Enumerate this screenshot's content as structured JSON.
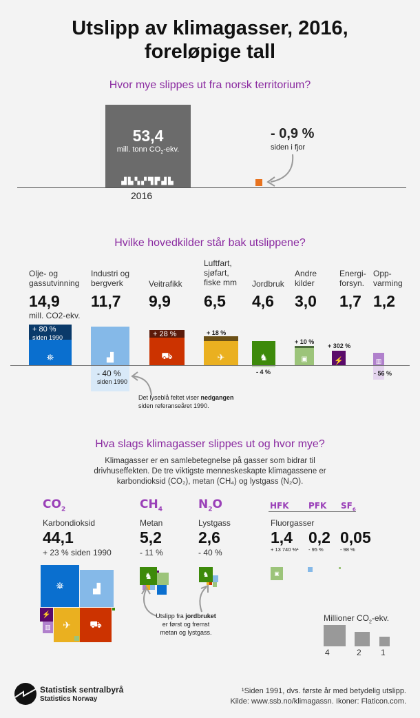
{
  "title_line1": "Utslipp av klimagasser, 2016,",
  "title_line2": "foreløpige tall",
  "section1": {
    "heading": "Hvor mye slippes ut fra norsk territorium?",
    "value": "53,4",
    "unit_pre": "mill. tonn CO",
    "unit_sub": "2",
    "unit_post": "-ekv.",
    "year": "2016",
    "change": "- 0,9 %",
    "change_label": "siden i fjor",
    "box_color": "#6b6b6b",
    "change_color": "#e8731f"
  },
  "section2": {
    "heading": "Hvilke hovedkilder står bak utslippene?",
    "unit": "mill. CO2-ekv.",
    "sources": [
      {
        "label": "Olje- og gassutvinning",
        "value": "14,9",
        "change": "+ 80 %",
        "change_sub": "siden 1990",
        "color": "#0a6fcf",
        "icon": "oil-platform-icon"
      },
      {
        "label": "Industri og bergverk",
        "value": "11,7",
        "change": "- 40 %",
        "change_sub": "siden 1990",
        "color": "#85b9e8",
        "icon": "factory-icon"
      },
      {
        "label": "Veitrafikk",
        "value": "9,9",
        "change": "+ 28 %",
        "color": "#cc3300",
        "icon": "car-icon"
      },
      {
        "label": "Luftfart, sjøfart, fiske mm",
        "value": "6,5",
        "change": "+ 18 %",
        "color": "#eab020",
        "icon": "plane-ship-icon"
      },
      {
        "label": "Jordbruk",
        "value": "4,6",
        "change": "- 4 %",
        "color": "#3d8a0a",
        "icon": "cow-icon"
      },
      {
        "label": "Andre kilder",
        "value": "3,0",
        "change": "+ 10 %",
        "color": "#9cc47a",
        "icon": "other-icon"
      },
      {
        "label": "Energi-forsyn.",
        "value": "1,7",
        "change": "+ 302 %",
        "color": "#5a0a6a",
        "icon": "power-pylon-icon"
      },
      {
        "label": "Opp-varming",
        "value": "1,2",
        "change": "- 56 %",
        "color": "#b080cc",
        "icon": "radiator-icon"
      }
    ],
    "note_pre": "Det lyseblå feltet viser ",
    "note_bold": "nedgangen",
    "note_post": "siden referanseåret 1990."
  },
  "section3": {
    "heading": "Hva slags klimagasser slippes ut og hvor mye?",
    "intro1": "Klimagasser er en samlebetegnelse på gasser som bidrar til",
    "intro2": "drivhuseffekten. De tre viktigste menneskeskapte klimagassene er",
    "intro3": "karbondioksid (CO₂), metan (CH₄) og lystgass (N₂O).",
    "co2": {
      "formula": "CO",
      "sub": "2",
      "name": "Karbondioksid",
      "value": "44,1",
      "change": "+ 23 % siden 1990"
    },
    "ch4": {
      "formula": "CH",
      "sub": "4",
      "name": "Metan",
      "value": "5,2",
      "change": "- 11 %"
    },
    "n2o": {
      "formula": "N",
      "sub": "2",
      "formula2": "O",
      "name": "Lystgass",
      "value": "2,6",
      "change": "- 40 %"
    },
    "fluor": {
      "name": "Fluorgasser",
      "hfk": {
        "formula": "HFK",
        "value": "1,4",
        "change": "+ 13 740 %¹"
      },
      "pfk": {
        "formula": "PFK",
        "value": "0,2",
        "change": "- 95 %"
      },
      "sf6": {
        "formula": "SF",
        "sub": "6",
        "value": "0,05",
        "change": "- 98 %"
      }
    },
    "agri_note1_pre": "Utslipp fra ",
    "agri_note1_bold": "jordbruket",
    "agri_note2": "er først og fremst",
    "agri_note3": "metan og lystgass.",
    "legend": {
      "title_pre": "Millioner CO",
      "title_sub": "2",
      "title_post": "-ekv.",
      "sizes": [
        "4",
        "2",
        "1"
      ]
    }
  },
  "footer": {
    "logo_line1": "Statistisk sentralbyrå",
    "logo_line2": "Statistics Norway",
    "note1": "¹Siden 1991, dvs. første år med betydelig utslipp.",
    "note2": "Kilde: www.ssb.no/klimagassn. Ikoner: Flaticon.com."
  }
}
